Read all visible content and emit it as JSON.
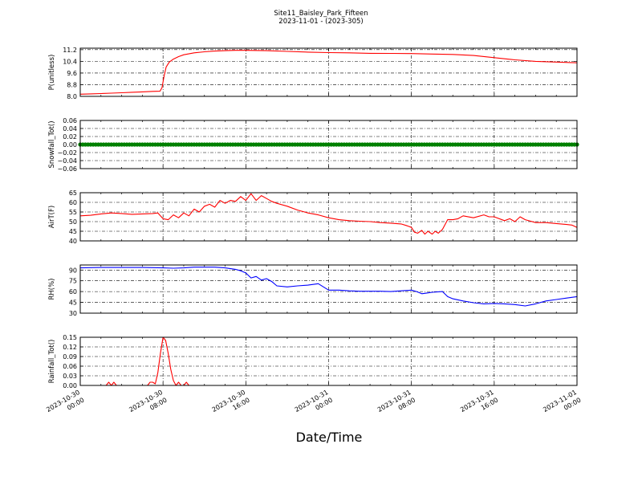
{
  "figure": {
    "title": "Site11_Baisley_Park_Fifteen",
    "subtitle": "2023-11-01 - (2023-305)",
    "xlabel": "Date/Time",
    "x_ticks": [
      {
        "t": 0,
        "line1": "2023-10-30",
        "line2": "00:00"
      },
      {
        "t": 8,
        "line1": "2023-10-30",
        "line2": "08:00"
      },
      {
        "t": 16,
        "line1": "2023-10-30",
        "line2": "16:00"
      },
      {
        "t": 24,
        "line1": "2023-10-31",
        "line2": "00:00"
      },
      {
        "t": 32,
        "line1": "2023-10-31",
        "line2": "08:00"
      },
      {
        "t": 40,
        "line1": "2023-10-31",
        "line2": "16:00"
      },
      {
        "t": 48,
        "line1": "2023-11-01",
        "line2": "00:00"
      }
    ],
    "x_range_hours": [
      0,
      48
    ]
  },
  "chart_data": [
    {
      "type": "line",
      "ylabel": "P(unitless)",
      "ylim": [
        8.0,
        11.3
      ],
      "yticks": [
        "8.0",
        "8.8",
        "9.6",
        "10.4",
        "11.2"
      ],
      "grid": true,
      "color": "#ff0000",
      "marker": false,
      "x": [
        0,
        1,
        2,
        3,
        4,
        5,
        6,
        7,
        7.7,
        7.9,
        8.1,
        8.3,
        8.6,
        9,
        9.5,
        10,
        11,
        12,
        13,
        14,
        15,
        16,
        18,
        20,
        22,
        24,
        26,
        28,
        30,
        32,
        34,
        36,
        38,
        40,
        42,
        44,
        46,
        48
      ],
      "y": [
        8.15,
        8.17,
        8.19,
        8.22,
        8.25,
        8.28,
        8.31,
        8.34,
        8.35,
        8.6,
        9.4,
        10.0,
        10.35,
        10.55,
        10.72,
        10.85,
        10.98,
        11.05,
        11.1,
        11.13,
        11.15,
        11.15,
        11.13,
        11.08,
        11.03,
        11.0,
        10.98,
        10.95,
        10.94,
        10.93,
        10.9,
        10.87,
        10.8,
        10.65,
        10.5,
        10.4,
        10.35,
        10.3
      ]
    },
    {
      "type": "scatter",
      "ylabel": "Snowfall_Tot()",
      "ylim": [
        -0.06,
        0.06
      ],
      "yticks": [
        "−0.06",
        "−0.04",
        "−0.02",
        "0.00",
        "0.02",
        "0.04",
        "0.06"
      ],
      "grid": true,
      "color": "#008000",
      "marker": true,
      "x_step": 0.25,
      "constant": 0.0
    },
    {
      "type": "line",
      "ylabel": "AirT(F)",
      "ylim": [
        40,
        65
      ],
      "yticks": [
        "40",
        "45",
        "50",
        "55",
        "60",
        "65"
      ],
      "grid": true,
      "color": "#ff0000",
      "marker": false,
      "x": [
        0,
        1,
        2,
        3,
        4,
        5,
        6,
        7,
        7.5,
        8,
        8.5,
        9,
        9.5,
        10,
        10.5,
        11,
        11.5,
        12,
        12.5,
        13,
        13.5,
        14,
        14.5,
        15,
        15.5,
        16,
        16.5,
        17,
        17.5,
        18,
        18.5,
        19,
        20,
        21,
        22,
        23,
        24,
        25,
        26,
        27,
        28,
        29,
        30,
        31,
        31.5,
        32,
        32.3,
        32.6,
        33,
        33.3,
        33.6,
        34,
        34.3,
        34.6,
        35,
        35.5,
        36,
        36.5,
        37,
        38,
        39,
        39.5,
        40,
        41,
        41.5,
        42,
        42.5,
        43,
        44,
        45,
        46,
        47,
        47.5,
        48
      ],
      "y": [
        53,
        53.3,
        54,
        54.5,
        54.2,
        53.8,
        54,
        54.2,
        54.5,
        51.5,
        51,
        53.5,
        52,
        54.5,
        53,
        56.5,
        55,
        58,
        59,
        57.5,
        61,
        59.5,
        61,
        60.5,
        63,
        61,
        64.5,
        61,
        63.5,
        62,
        60.5,
        59.5,
        58,
        56,
        54.5,
        53.5,
        52,
        51,
        50.5,
        50.2,
        50,
        49.5,
        49.2,
        48.8,
        48,
        47,
        44.5,
        44,
        45.5,
        43.5,
        45,
        43.5,
        45,
        44,
        46,
        51,
        51,
        51.5,
        53,
        52,
        53.5,
        52.5,
        52.5,
        50.5,
        51.5,
        50,
        52.5,
        51,
        49.5,
        49.5,
        49,
        48.5,
        48.2,
        47
      ]
    },
    {
      "type": "line",
      "ylabel": "RH(%)",
      "ylim": [
        30,
        97
      ],
      "yticks": [
        "30",
        "45",
        "60",
        "75",
        "90"
      ],
      "grid": true,
      "color": "#0000ff",
      "marker": false,
      "x": [
        0,
        2,
        4,
        6,
        8,
        9,
        10,
        11,
        12,
        13,
        14,
        15,
        15.5,
        16,
        16.5,
        17,
        17.5,
        18,
        18.5,
        19,
        20,
        21,
        22,
        23,
        24,
        25,
        26,
        27,
        28,
        29,
        30,
        31,
        32,
        32.5,
        33,
        33.5,
        34,
        35,
        35.5,
        36,
        37,
        38,
        39,
        40,
        41,
        42,
        43,
        44,
        45,
        46,
        47,
        48
      ],
      "y": [
        93,
        93.5,
        93.5,
        93.5,
        93,
        92.5,
        93,
        94,
        94,
        94,
        93,
        91,
        89,
        86,
        79,
        81,
        76,
        78,
        74,
        68,
        66.5,
        68,
        69,
        71,
        62,
        62,
        61,
        60.5,
        60.5,
        60.5,
        60,
        61,
        62,
        60,
        57,
        58,
        59,
        60,
        53,
        50,
        47,
        44.5,
        43,
        43.5,
        43,
        42,
        40,
        43,
        47,
        49,
        51,
        53
      ]
    },
    {
      "type": "line",
      "ylabel": "Rainfall_Tot()",
      "ylim": [
        0.0,
        0.15
      ],
      "yticks": [
        "0.00",
        "0.03",
        "0.06",
        "0.09",
        "0.12",
        "0.15"
      ],
      "grid": true,
      "color": "#ff0000",
      "marker": false,
      "x": [
        0,
        2.5,
        2.75,
        3,
        3.25,
        3.5,
        6.5,
        6.75,
        7,
        7.25,
        7.5,
        7.75,
        8,
        8.25,
        8.5,
        8.75,
        9,
        9.25,
        9.5,
        9.75,
        10,
        10.25,
        10.5,
        48
      ],
      "y": [
        0,
        0,
        0.01,
        0,
        0.01,
        0,
        0,
        0.01,
        0.01,
        0.005,
        0.04,
        0.1,
        0.15,
        0.14,
        0.1,
        0.05,
        0.015,
        0,
        0.01,
        0,
        0,
        0.01,
        0,
        0
      ]
    }
  ]
}
